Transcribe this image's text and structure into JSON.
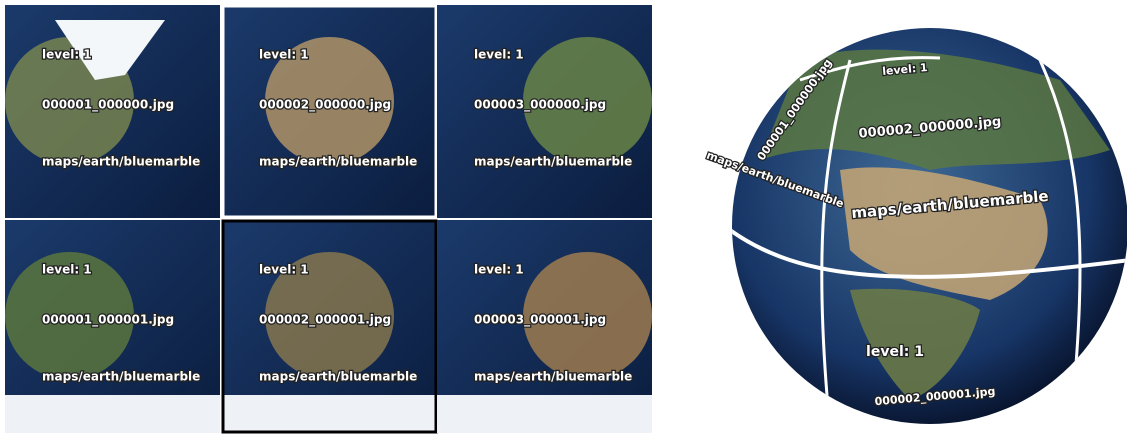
{
  "tiles": [
    {
      "level": "level: 1",
      "file": "000001_000000.jpg",
      "path": "maps/earth/bluemarble"
    },
    {
      "level": "level: 1",
      "file": "000002_000000.jpg",
      "path": "maps/earth/bluemarble"
    },
    {
      "level": "level: 1",
      "file": "000003_000000.jpg",
      "path": "maps/earth/bluemarble"
    },
    {
      "level": "level: 1",
      "file": "000001_000001.jpg",
      "path": "maps/earth/bluemarble"
    },
    {
      "level": "level: 1",
      "file": "000002_000001.jpg",
      "path": "maps/earth/bluemarble"
    },
    {
      "level": "level: 1",
      "file": "000003_000001.jpg",
      "path": "maps/earth/bluemarble"
    }
  ],
  "globe": {
    "labels": [
      {
        "text": "level: 1"
      },
      {
        "text": "000001_000000.jpg"
      },
      {
        "text": "000002_000000.jpg"
      },
      {
        "text": "maps/earth/bluemarble"
      },
      {
        "text": "maps/earth/bluemarble"
      },
      {
        "text": "level: 1"
      },
      {
        "text": "000002_000001.jpg"
      }
    ]
  }
}
